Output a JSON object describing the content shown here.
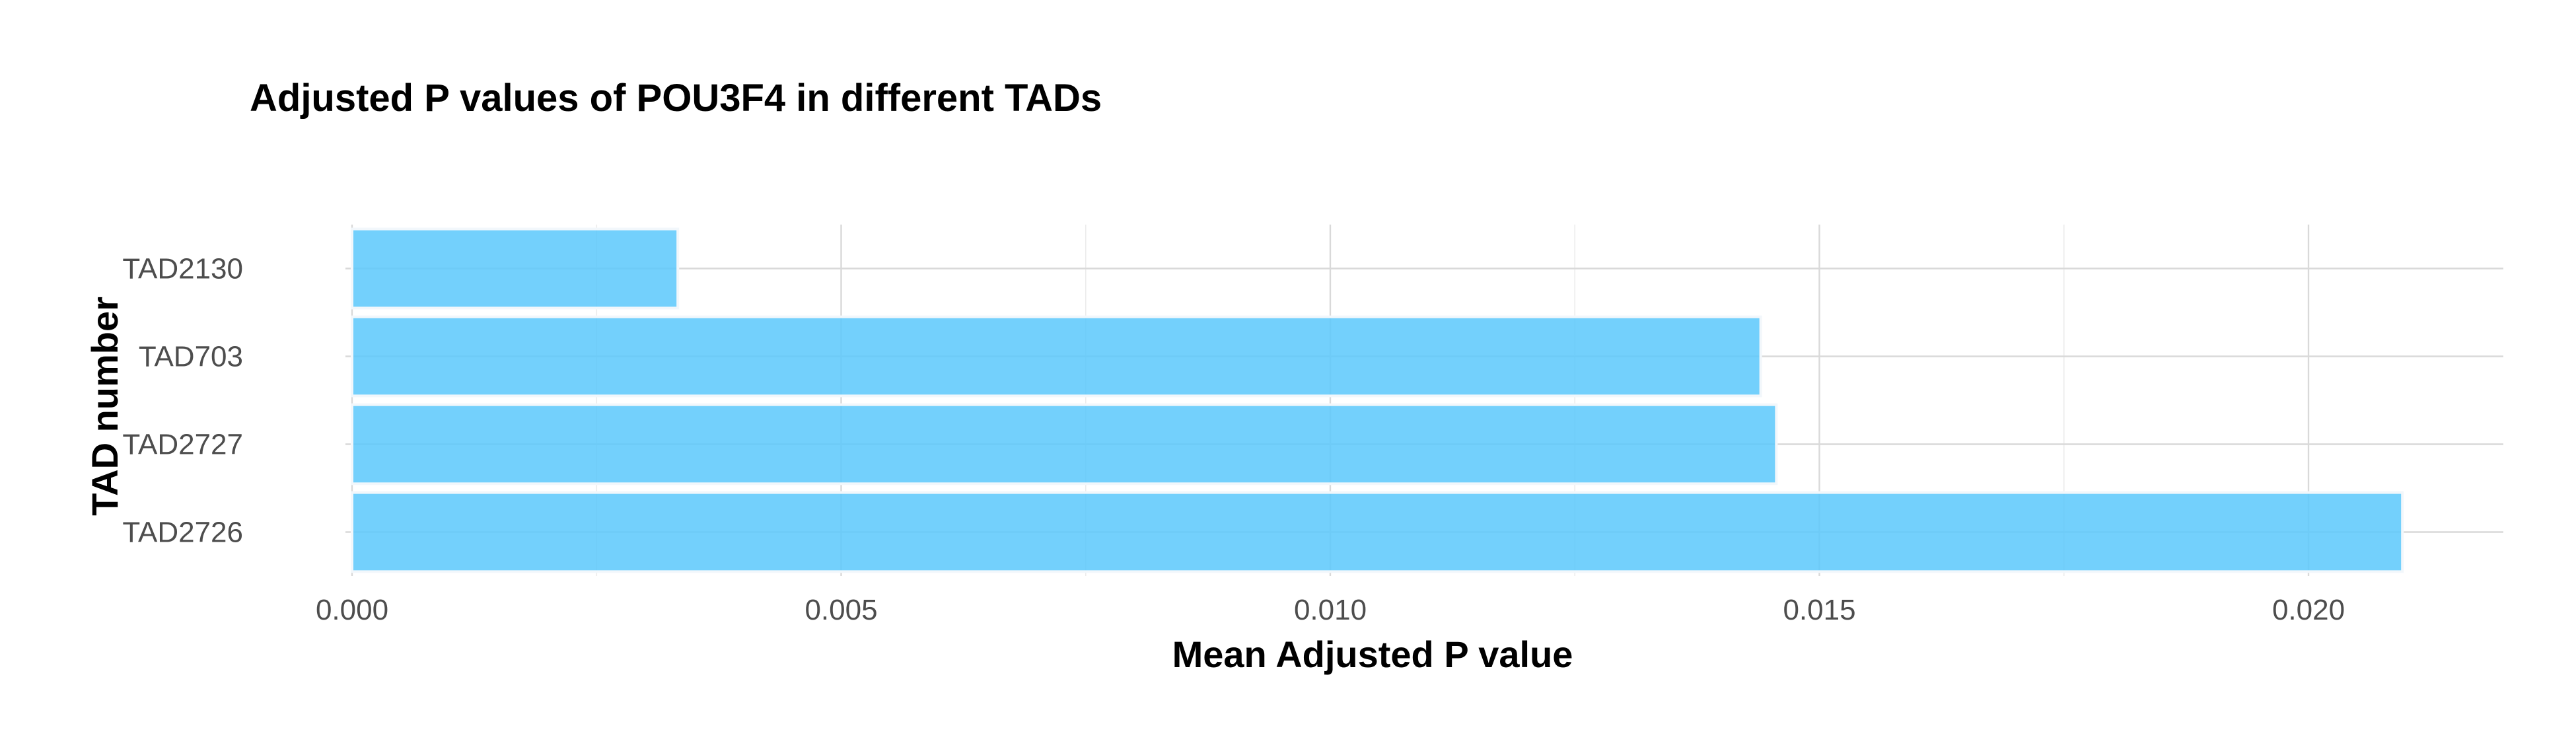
{
  "chart_data": {
    "type": "bar",
    "orientation": "horizontal",
    "title": "Adjusted P values of POU3F4 in different TADs",
    "xlabel": "Mean Adjusted P value",
    "ylabel": "TAD number",
    "categories": [
      "TAD2130",
      "TAD703",
      "TAD2727",
      "TAD2726"
    ],
    "values": [
      0.00333,
      0.0144,
      0.01456,
      0.02096
    ],
    "xlim": [
      0,
      0.022
    ],
    "xticks": [
      0.0,
      0.005,
      0.01,
      0.015,
      0.02
    ],
    "xtick_labels": [
      "0.000",
      "0.005",
      "0.010",
      "0.015",
      "0.020"
    ],
    "grid": true,
    "legend": "none",
    "bar_color": "#5BC8FB"
  }
}
